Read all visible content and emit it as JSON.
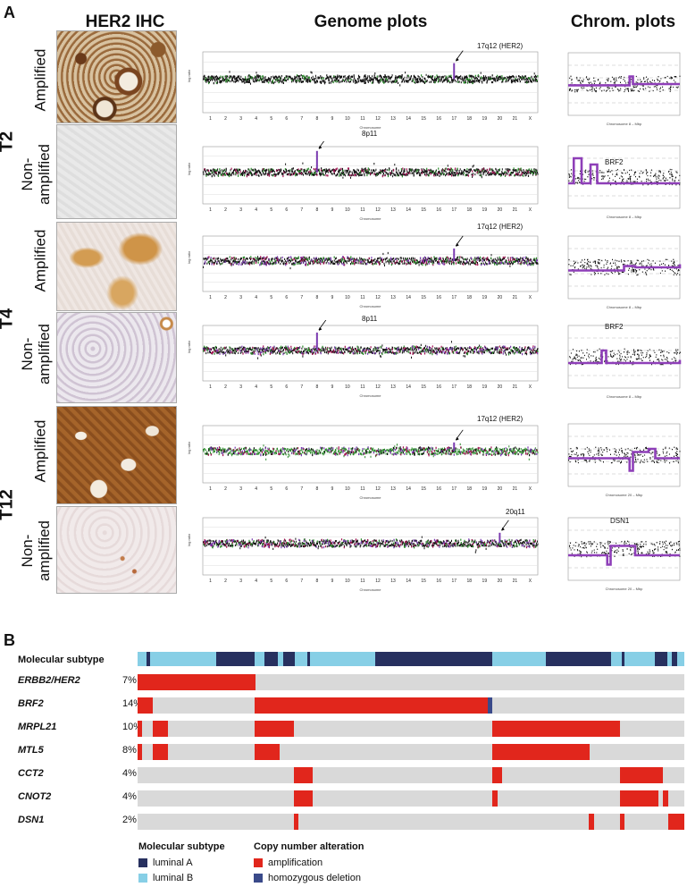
{
  "panel_a": {
    "letter": "A",
    "columns": {
      "ihc": "HER2 IHC",
      "genome": "Genome plots",
      "chrom": "Chrom. plots"
    },
    "tumors": [
      "T2",
      "T4",
      "T12"
    ],
    "status": {
      "amplified": "Amplified",
      "non_amplified_1": "Non-",
      "non_amplified_2": "amplified"
    },
    "annotations": [
      "17q12 (HER2)",
      "8p11",
      "17q12 (HER2)",
      "8p11",
      "17q12 (HER2)",
      "20q11"
    ],
    "chrom_annotations": [
      "",
      "BRF2",
      "",
      "BRF2",
      "",
      "DSN1"
    ],
    "chromosome_labels": [
      "1",
      "2",
      "3",
      "4",
      "5",
      "6",
      "7",
      "8",
      "9",
      "10",
      "11",
      "12",
      "13",
      "14",
      "15",
      "16",
      "17",
      "18",
      "19",
      "20",
      "21",
      "X"
    ],
    "x_axis_label": "Chromosome",
    "y_axis_label": "log ratio",
    "chrom_x_label": "Chromosome 8 – Mbp",
    "chrom_x_label_20": "Chromosome 20 – Mbp"
  },
  "panel_b": {
    "letter": "B",
    "subtype_label": "Molecular subtype",
    "genes": [
      {
        "name": "ERBB2/HER2",
        "pct": "7%"
      },
      {
        "name": "BRF2",
        "pct": "14%"
      },
      {
        "name": "MRPL21",
        "pct": "10%"
      },
      {
        "name": "MTL5",
        "pct": "8%"
      },
      {
        "name": "CCT2",
        "pct": "4%"
      },
      {
        "name": "CNOT2",
        "pct": "4%"
      },
      {
        "name": "DSN1",
        "pct": "2%"
      }
    ],
    "legend": {
      "subtype_title": "Molecular subtype",
      "luminal_a": "luminal A",
      "luminal_b": "luminal B",
      "cna_title": "Copy number alteration",
      "amplification": "amplification",
      "homdel": "homozygous deletion"
    },
    "colors": {
      "luminal_a": "#27305f",
      "luminal_b": "#87cfe6",
      "amplification": "#e1261c",
      "homdel": "#3a4a8a",
      "background": "#d9d9d9"
    }
  }
}
